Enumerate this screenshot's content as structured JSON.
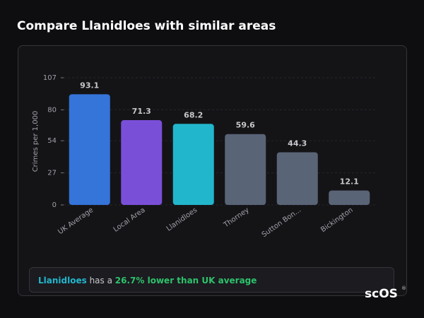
{
  "chart_data": {
    "type": "bar",
    "title": "Compare Llanidloes with similar areas",
    "y_label": "Crimes per 1,000",
    "categories": [
      "UK Average",
      "Local Area",
      "Llanidloes",
      "Thorney",
      "Sutton Bon...",
      "Bickington"
    ],
    "values": [
      93.1,
      71.3,
      68.2,
      59.6,
      44.3,
      12.1
    ],
    "colors": [
      "#3574d9",
      "#7a4fd8",
      "#22b6cc",
      "#5a6477",
      "#5a6477",
      "#5a6477"
    ],
    "ylim": [
      0,
      107
    ],
    "yticks": [
      0,
      27,
      54,
      80,
      107
    ],
    "grid": true
  },
  "summary": {
    "place": "Llanidloes",
    "text": "has a",
    "highlight": "26.7% lower than UK average"
  },
  "logo": "scOS",
  "logo_mark": "®"
}
